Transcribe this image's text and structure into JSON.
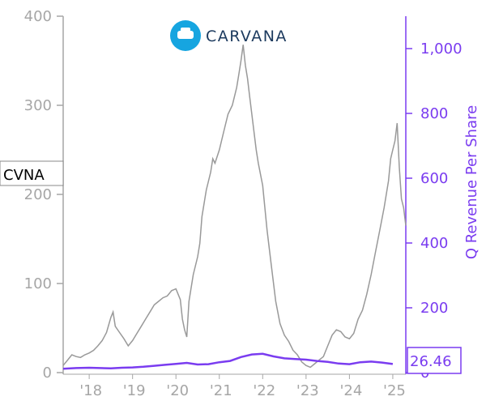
{
  "chart_data": {
    "type": "line",
    "ticker": "CVNA",
    "logo_text": "CARVANA",
    "right_axis_label": "Q Revenue Per Share",
    "latest_value_label": "26.46",
    "colors": {
      "price": "#999999",
      "revenue": "#7a3cf0",
      "left_axis": "#a6a6a6",
      "right_axis": "#7a3cf0",
      "logo_circle": "#16a5e0"
    },
    "x_ticks": [
      "'18",
      "'19",
      "'20",
      "'21",
      "'22",
      "'23",
      "'24",
      "'25"
    ],
    "x_tick_years": [
      2018,
      2019,
      2020,
      2021,
      2022,
      2023,
      2024,
      2025
    ],
    "xlim": [
      2017.4,
      2025.3
    ],
    "left_axis": {
      "ticks": [
        0,
        100,
        200,
        300,
        400
      ],
      "ylim": [
        0,
        400
      ]
    },
    "right_axis": {
      "ticks": [
        "0",
        "200",
        "400",
        "600",
        "800",
        "1,000"
      ],
      "tick_values": [
        0,
        200,
        400,
        600,
        800,
        1000
      ],
      "ylim": [
        0,
        1100
      ]
    },
    "series": [
      {
        "name": "CVNA",
        "axis": "left",
        "x": [
          2017.4,
          2017.5,
          2017.6,
          2017.7,
          2017.8,
          2017.9,
          2018.0,
          2018.1,
          2018.2,
          2018.3,
          2018.4,
          2018.5,
          2018.55,
          2018.6,
          2018.7,
          2018.8,
          2018.9,
          2019.0,
          2019.1,
          2019.2,
          2019.3,
          2019.4,
          2019.5,
          2019.6,
          2019.7,
          2019.8,
          2019.9,
          2020.0,
          2020.1,
          2020.15,
          2020.2,
          2020.25,
          2020.3,
          2020.4,
          2020.5,
          2020.55,
          2020.6,
          2020.7,
          2020.8,
          2020.85,
          2020.9,
          2021.0,
          2021.1,
          2021.2,
          2021.3,
          2021.4,
          2021.45,
          2021.5,
          2021.55,
          2021.6,
          2021.65,
          2021.7,
          2021.75,
          2021.8,
          2021.85,
          2021.9,
          2022.0,
          2022.1,
          2022.2,
          2022.3,
          2022.4,
          2022.5,
          2022.6,
          2022.7,
          2022.8,
          2022.9,
          2023.0,
          2023.1,
          2023.2,
          2023.3,
          2023.4,
          2023.5,
          2023.6,
          2023.7,
          2023.8,
          2023.9,
          2024.0,
          2024.1,
          2024.2,
          2024.3,
          2024.4,
          2024.5,
          2024.6,
          2024.7,
          2024.8,
          2024.85,
          2024.9,
          2024.95,
          2025.0,
          2025.05,
          2025.1,
          2025.15,
          2025.2,
          2025.25,
          2025.3
        ],
        "y": [
          8,
          14,
          20,
          18,
          17,
          20,
          22,
          25,
          30,
          36,
          45,
          62,
          68,
          52,
          45,
          38,
          30,
          36,
          44,
          52,
          60,
          68,
          76,
          80,
          84,
          86,
          92,
          94,
          82,
          60,
          48,
          40,
          80,
          110,
          130,
          145,
          175,
          205,
          225,
          240,
          235,
          250,
          270,
          290,
          300,
          320,
          335,
          350,
          368,
          345,
          330,
          310,
          290,
          270,
          250,
          235,
          210,
          160,
          120,
          80,
          55,
          42,
          35,
          25,
          20,
          12,
          8,
          6,
          10,
          14,
          18,
          30,
          42,
          48,
          46,
          40,
          38,
          44,
          60,
          70,
          88,
          110,
          135,
          160,
          185,
          200,
          215,
          240,
          250,
          260,
          280,
          230,
          195,
          185,
          165
        ]
      },
      {
        "name": "Q Revenue Per Share",
        "axis": "right",
        "x": [
          2017.4,
          2017.7,
          2018.0,
          2018.25,
          2018.5,
          2018.75,
          2019.0,
          2019.25,
          2019.5,
          2019.75,
          2020.0,
          2020.25,
          2020.5,
          2020.75,
          2021.0,
          2021.25,
          2021.5,
          2021.75,
          2022.0,
          2022.25,
          2022.5,
          2022.75,
          2023.0,
          2023.25,
          2023.5,
          2023.75,
          2024.0,
          2024.25,
          2024.5,
          2024.75,
          2025.0
        ],
        "y": [
          12,
          14,
          15,
          14,
          13,
          15,
          16,
          18,
          21,
          24,
          27,
          30,
          25,
          26,
          32,
          36,
          48,
          56,
          58,
          50,
          44,
          42,
          40,
          36,
          33,
          28,
          26,
          32,
          34,
          31,
          26.46
        ]
      }
    ]
  }
}
